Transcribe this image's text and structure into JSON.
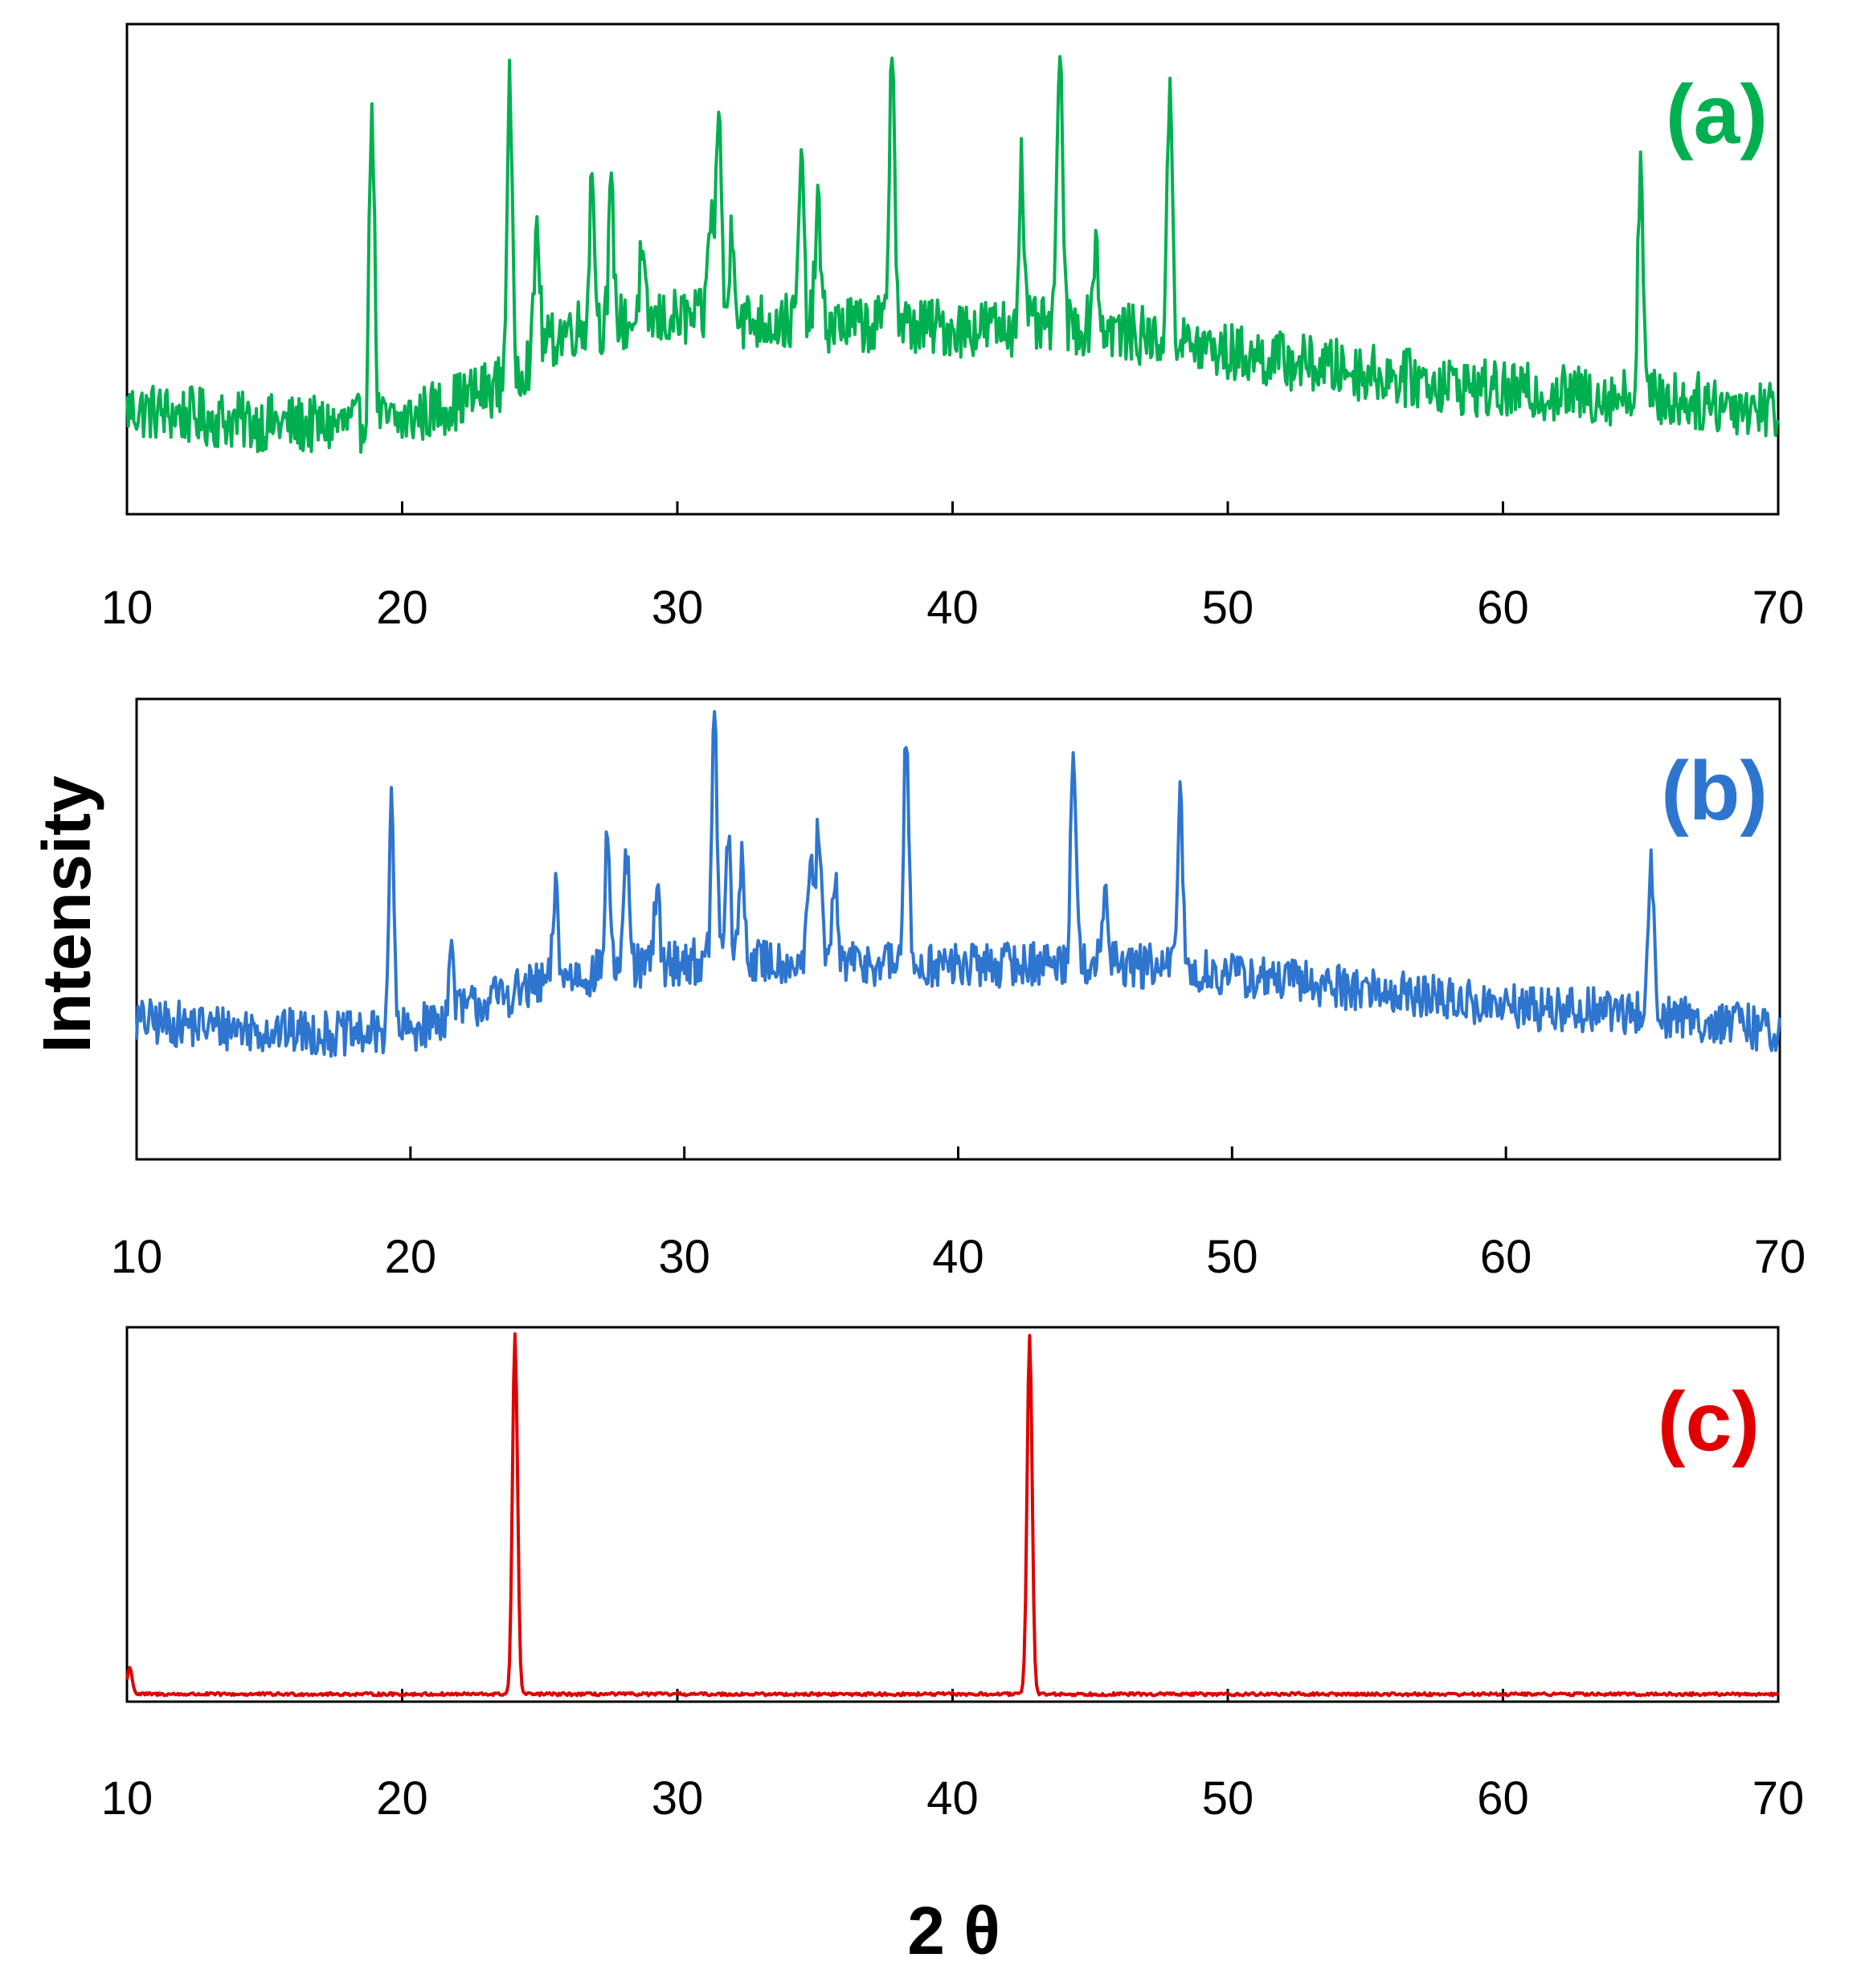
{
  "chart_data": [
    {
      "type": "line",
      "panel_label": "(a)",
      "color": "#00B050",
      "xlim": [
        10,
        70
      ],
      "x_ticks": [
        "10",
        "20",
        "30",
        "40",
        "50",
        "60",
        "70"
      ],
      "y_ticks_visible": false,
      "baseline": {
        "points": [
          [
            10,
            0.215
          ],
          [
            14,
            0.19
          ],
          [
            17,
            0.18
          ],
          [
            20,
            0.19
          ],
          [
            23.6,
            0.265
          ],
          [
            26,
            0.38
          ],
          [
            30,
            0.4
          ],
          [
            35,
            0.39
          ],
          [
            40,
            0.38
          ],
          [
            45,
            0.385
          ],
          [
            50,
            0.33
          ],
          [
            55,
            0.29
          ],
          [
            60,
            0.25
          ],
          [
            65,
            0.24
          ],
          [
            70,
            0.215
          ]
        ]
      },
      "noise_amplitude": 0.06,
      "peaks": [
        {
          "x": 18.9,
          "height": 0.85
        },
        {
          "x": 23.9,
          "height": 0.88
        },
        {
          "x": 24.9,
          "height": 0.6
        },
        {
          "x": 26.9,
          "height": 0.7
        },
        {
          "x": 27.6,
          "height": 0.65
        },
        {
          "x": 28.7,
          "height": 0.52
        },
        {
          "x": 31.2,
          "height": 0.62
        },
        {
          "x": 31.5,
          "height": 0.85
        },
        {
          "x": 32.0,
          "height": 0.6
        },
        {
          "x": 34.5,
          "height": 0.72
        },
        {
          "x": 35.1,
          "height": 0.64
        },
        {
          "x": 37.8,
          "height": 0.99
        },
        {
          "x": 42.5,
          "height": 0.72
        },
        {
          "x": 43.9,
          "height": 0.99
        },
        {
          "x": 45.2,
          "height": 0.56
        },
        {
          "x": 47.9,
          "height": 0.89
        },
        {
          "x": 65.0,
          "height": 0.73
        }
      ]
    },
    {
      "type": "line",
      "panel_label": "(b)",
      "color": "#2E75CF",
      "xlim": [
        10,
        70
      ],
      "x_ticks": [
        "10",
        "20",
        "30",
        "40",
        "50",
        "60",
        "70"
      ],
      "y_ticks_visible": false,
      "baseline": {
        "points": [
          [
            10,
            0.3
          ],
          [
            15,
            0.28
          ],
          [
            18,
            0.27
          ],
          [
            20,
            0.28
          ],
          [
            23,
            0.35
          ],
          [
            26,
            0.4
          ],
          [
            30,
            0.43
          ],
          [
            35,
            0.43
          ],
          [
            40,
            0.42
          ],
          [
            45,
            0.43
          ],
          [
            50,
            0.4
          ],
          [
            55,
            0.37
          ],
          [
            60,
            0.33
          ],
          [
            65,
            0.32
          ],
          [
            70,
            0.28
          ]
        ]
      },
      "noise_amplitude": 0.05,
      "peaks": [
        {
          "x": 19.3,
          "height": 0.77
        },
        {
          "x": 21.5,
          "height": 0.45
        },
        {
          "x": 25.3,
          "height": 0.59
        },
        {
          "x": 27.2,
          "height": 0.71
        },
        {
          "x": 27.9,
          "height": 0.66
        },
        {
          "x": 29.0,
          "height": 0.59
        },
        {
          "x": 31.1,
          "height": 0.98
        },
        {
          "x": 31.6,
          "height": 0.7
        },
        {
          "x": 32.1,
          "height": 0.66
        },
        {
          "x": 34.6,
          "height": 0.65
        },
        {
          "x": 34.9,
          "height": 0.73
        },
        {
          "x": 35.5,
          "height": 0.6
        },
        {
          "x": 38.1,
          "height": 0.91
        },
        {
          "x": 44.2,
          "height": 0.91
        },
        {
          "x": 45.4,
          "height": 0.58
        },
        {
          "x": 48.1,
          "height": 0.8
        },
        {
          "x": 65.3,
          "height": 0.67
        }
      ]
    },
    {
      "type": "line",
      "panel_label": "(c)",
      "color": "#E00000",
      "xlim": [
        10,
        70
      ],
      "x_ticks": [
        "10",
        "20",
        "30",
        "40",
        "50",
        "60",
        "70"
      ],
      "y_ticks_visible": false,
      "baseline": {
        "points": [
          [
            10,
            0.02
          ],
          [
            70,
            0.02
          ]
        ]
      },
      "noise_amplitude": 0.004,
      "peaks": [
        {
          "x": 10.1,
          "height": 0.09
        },
        {
          "x": 24.1,
          "height": 0.98
        },
        {
          "x": 42.8,
          "height": 0.98
        }
      ]
    }
  ],
  "shared": {
    "ylabel": "Intensity",
    "xlabel": "2 θ"
  }
}
